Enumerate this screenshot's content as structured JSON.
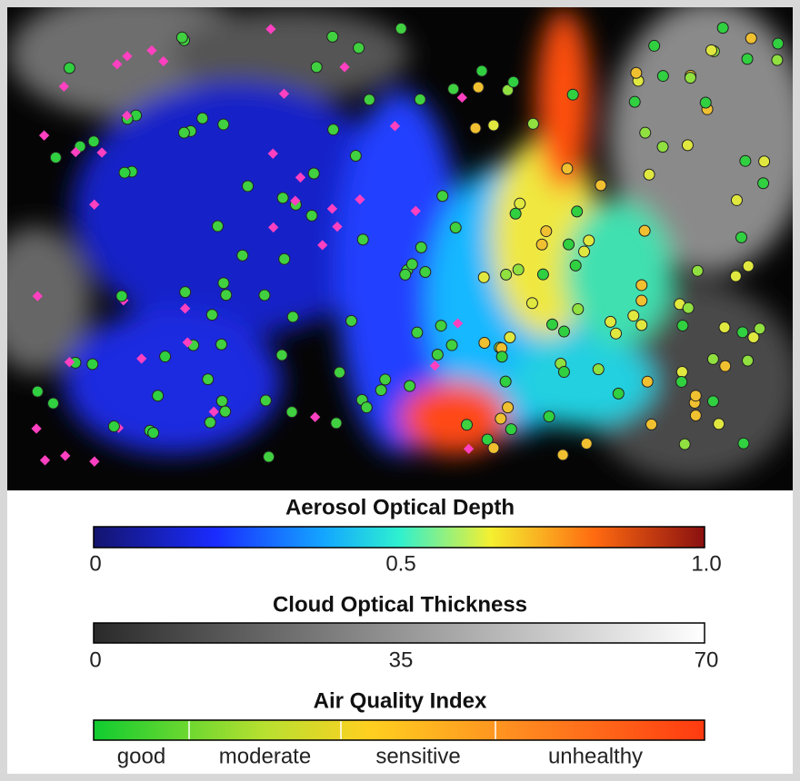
{
  "legends": [
    {
      "title": "Aerosol Optical Depth",
      "lim": [
        0,
        1
      ],
      "ticks": [
        0,
        0.5,
        {
          "value": 1,
          "label": "1.0"
        }
      ]
    },
    {
      "title": "Cloud Optical Thickness",
      "lim": [
        0,
        70
      ],
      "ticks": [
        0,
        35,
        70
      ]
    },
    {
      "title": "Air Quality  Index",
      "categories": [
        "good",
        "moderate",
        "sensitive",
        "unhealthy"
      ]
    }
  ]
}
